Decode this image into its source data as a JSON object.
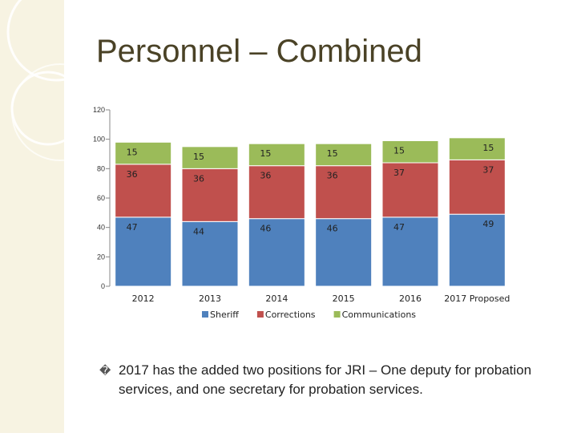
{
  "slide": {
    "title": "Personnel – Combined",
    "bullet_glyph": "�",
    "bullet_text": "2017 has the added two positions for JRI – One deputy for probation services, and one secretary for probation services."
  },
  "colors": {
    "sheriff": "#4f81bd",
    "corrections": "#c0504d",
    "communications": "#9bbb59",
    "title": "#4a4226",
    "band": "#f7f3e2"
  },
  "chart_data": {
    "type": "bar",
    "stacked": true,
    "categories": [
      "2012",
      "2013",
      "2014",
      "2015",
      "2016",
      "2017 Proposed"
    ],
    "series": [
      {
        "name": "Sheriff",
        "values": [
          47,
          44,
          46,
          46,
          47,
          49
        ],
        "color": "#4f81bd"
      },
      {
        "name": "Corrections",
        "values": [
          36,
          36,
          36,
          36,
          37,
          37
        ],
        "color": "#c0504d"
      },
      {
        "name": "Communications",
        "values": [
          15,
          15,
          15,
          15,
          15,
          15
        ],
        "color": "#9bbb59"
      }
    ],
    "yticks": [
      "0",
      "20",
      "40",
      "60",
      "80",
      "100",
      "120"
    ],
    "ylim": [
      0,
      120
    ],
    "grid": false,
    "legend": "bottom"
  }
}
